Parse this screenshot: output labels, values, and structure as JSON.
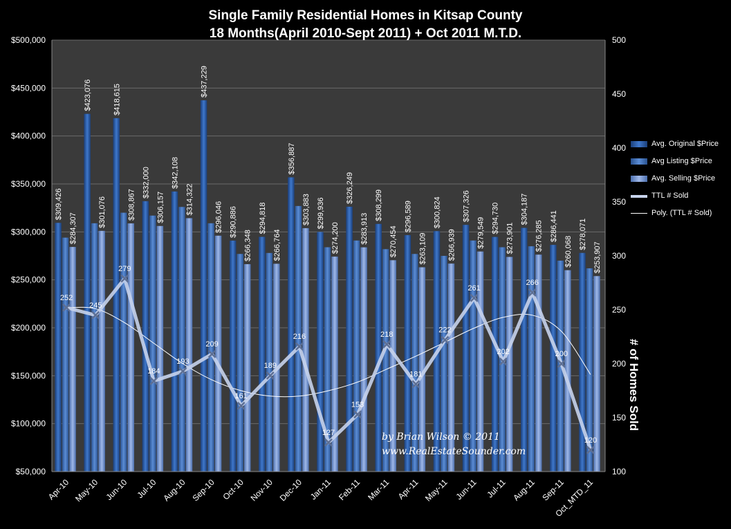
{
  "title": "Single Family Residential Homes in Kitsap County",
  "subtitle": "18 Months(April  2010-Sept  2011) + Oct 2011 M.T.D.",
  "credit": [
    "by Brian Wilson  © 2011",
    "www.RealEstateSounder.com"
  ],
  "legend": [
    {
      "label": "Avg. Original $Price",
      "color": "#2f62ad"
    },
    {
      "label": "Avg Listing $Price",
      "color": "#4a78bf"
    },
    {
      "label": "Avg. Selling $Price",
      "color": "#7a9ad6"
    },
    {
      "label": "TTL # Sold",
      "color": "#c7d3ec"
    },
    {
      "label": "Poly. (TTL # Sold)",
      "color": "#ffffff"
    }
  ],
  "chart_data": {
    "type": "bar",
    "categories": [
      "Apr-10",
      "May-10",
      "Jun-10",
      "Jul-10",
      "Aug-10",
      "Sep-10",
      "Oct-10",
      "Nov-10",
      "Dec-10",
      "Jan-11",
      "Feb-11",
      "Mar-11",
      "Apr-11",
      "May-11",
      "Jun-11",
      "Jul-11",
      "Aug-11",
      "Sep-11",
      "Oct_MTD_11"
    ],
    "series": [
      {
        "name": "Avg. Original $Price",
        "axis": "left",
        "color": "#2f62ad",
        "values": [
          309426,
          423076,
          418615,
          332000,
          342108,
          437229,
          290886,
          294818,
          356887,
          299936,
          326249,
          308299,
          296589,
          300824,
          307326,
          294730,
          304187,
          286441,
          278071
        ]
      },
      {
        "name": "Avg Listing $Price",
        "axis": "left",
        "color": "#4a78bf",
        "label_format": "none",
        "values": [
          294000,
          309000,
          320000,
          317000,
          326000,
          309000,
          277000,
          278000,
          327000,
          284000,
          291000,
          282000,
          277000,
          275000,
          291000,
          284000,
          285000,
          270000,
          262000
        ]
      },
      {
        "name": "Avg. Selling $Price",
        "axis": "left",
        "color": "#7a9ad6",
        "values": [
          284307,
          301076,
          308867,
          306157,
          314322,
          296046,
          266348,
          266764,
          303883,
          274200,
          283913,
          270454,
          263109,
          266939,
          279549,
          273901,
          276285,
          260068,
          253907
        ]
      },
      {
        "name": "TTL # Sold",
        "axis": "right",
        "type": "line",
        "color": "#c7d3ec",
        "values": [
          252,
          245,
          279,
          184,
          193,
          209,
          161,
          189,
          216,
          127,
          153,
          218,
          181,
          222,
          261,
          202,
          266,
          200,
          120
        ]
      }
    ],
    "label_texts": {
      "original": [
        "$309,426",
        "$423,076",
        "$418,615",
        "$332,000",
        "$342,108",
        "$437,229",
        "$290,886",
        "$294,818",
        "$356,887",
        "$299,936",
        "$326,249",
        "$308,299",
        "$296,589",
        "$300,824",
        "$307,326",
        "$294,730",
        "$304,187",
        "$286,441",
        "$278,071"
      ],
      "selling": [
        "$284,307",
        "$301,076",
        "$308,867",
        "$306,157",
        "$314,322",
        "$296,046",
        "$266,348",
        "$266,764",
        "$303,883",
        "$274,200",
        "$283,913",
        "$270,454",
        "$263,109",
        "$266,939",
        "$279,549",
        "$273,901",
        "$276,285",
        "$260,068",
        "$253,907"
      ],
      "sold": [
        "252",
        "245",
        "279",
        "184",
        "193",
        "209",
        "161",
        "189",
        "216",
        "127",
        "153",
        "218",
        "181",
        "222",
        "261",
        "202",
        "266",
        "200",
        "120"
      ]
    },
    "trendline_name": "Poly. (TTL # Sold)",
    "trendline_values": [
      252,
      251,
      238,
      219,
      200,
      185,
      175,
      170,
      170,
      175,
      183,
      195,
      207,
      220,
      233,
      243,
      245,
      230,
      190
    ],
    "ylim_left": [
      50000,
      500000
    ],
    "ylim_right": [
      100,
      500
    ],
    "yticks_left": [
      "$50,000",
      "$100,000",
      "$150,000",
      "$200,000",
      "$250,000",
      "$300,000",
      "$350,000",
      "$400,000",
      "$450,000",
      "$500,000"
    ],
    "yticks_right": [
      "100",
      "150",
      "200",
      "250",
      "300",
      "350",
      "400",
      "450",
      "500"
    ],
    "ylabel_right": "# of Homes Sold",
    "grid": true,
    "legend_position": "right"
  }
}
